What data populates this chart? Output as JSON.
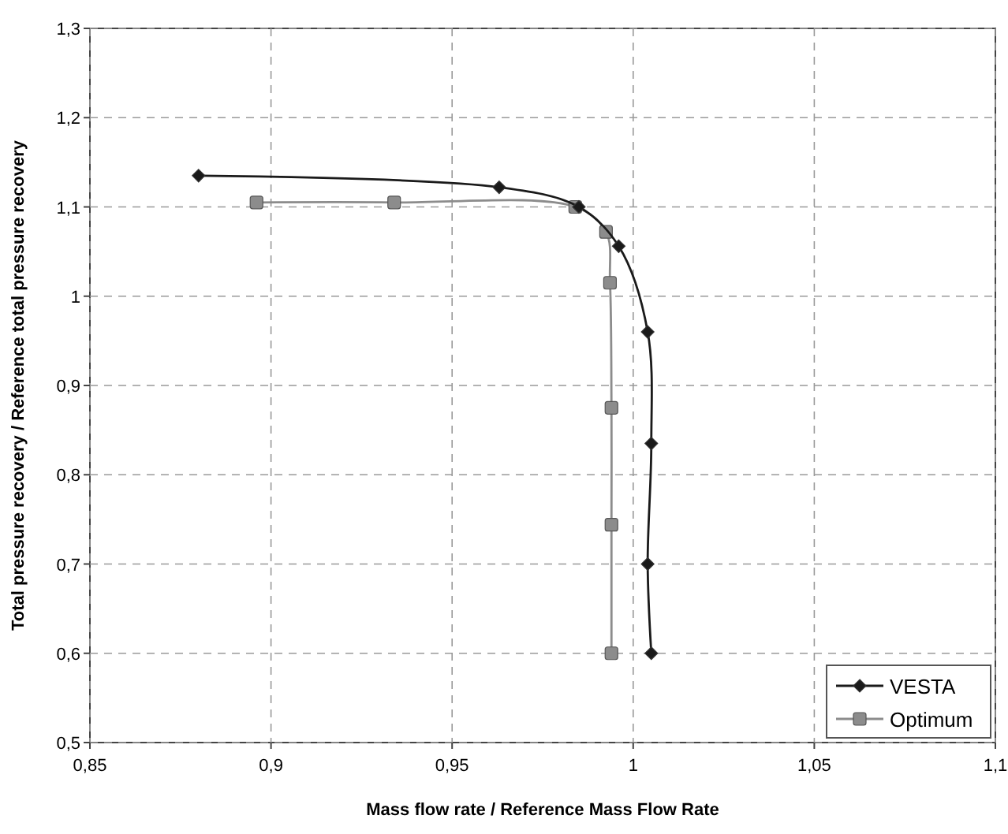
{
  "chart_data": {
    "type": "line",
    "xlabel": "Mass flow rate / Reference Mass Flow Rate",
    "ylabel": "Total pressure recovery / Reference total pressure recovery",
    "xlim": [
      0.85,
      1.1
    ],
    "xticks": [
      {
        "value": 0.85,
        "label": "0,85"
      },
      {
        "value": 0.9,
        "label": "0,9"
      },
      {
        "value": 0.95,
        "label": "0,95"
      },
      1,
      {
        "value": 1.05,
        "label": "1,05"
      },
      {
        "value": 1.1,
        "label": "1,1"
      }
    ],
    "ylim": [
      0.5,
      1.3
    ],
    "yticks": [
      {
        "value": 0.5,
        "label": "0,5"
      },
      {
        "value": 0.6,
        "label": "0,6"
      },
      {
        "value": 0.7,
        "label": "0,7"
      },
      {
        "value": 0.8,
        "label": "0,8"
      },
      {
        "value": 0.9,
        "label": "0,9"
      },
      1,
      {
        "value": 1.1,
        "label": "1,1"
      },
      {
        "value": 1.2,
        "label": "1,2"
      },
      {
        "value": 1.3,
        "label": "1,3"
      }
    ],
    "grid": true,
    "legend": "bottom right",
    "line_style": "solid",
    "series": [
      {
        "name": "VESTA",
        "color": "#1a1a1a",
        "marker": "diamond",
        "x": [
          0.88,
          0.963,
          0.985,
          0.996,
          1.004,
          1.005,
          1.004,
          1.005
        ],
        "values": [
          1.135,
          1.122,
          1.1,
          1.056,
          0.96,
          0.835,
          0.7,
          0.6
        ]
      },
      {
        "name": "Optimum",
        "color": "#8c8c8c",
        "marker": "square",
        "x": [
          0.896,
          0.934,
          0.984,
          0.9925,
          0.9936,
          0.994,
          0.994,
          0.994
        ],
        "values": [
          1.105,
          1.105,
          1.1,
          1.072,
          1.015,
          0.875,
          0.744,
          0.6
        ]
      }
    ]
  }
}
